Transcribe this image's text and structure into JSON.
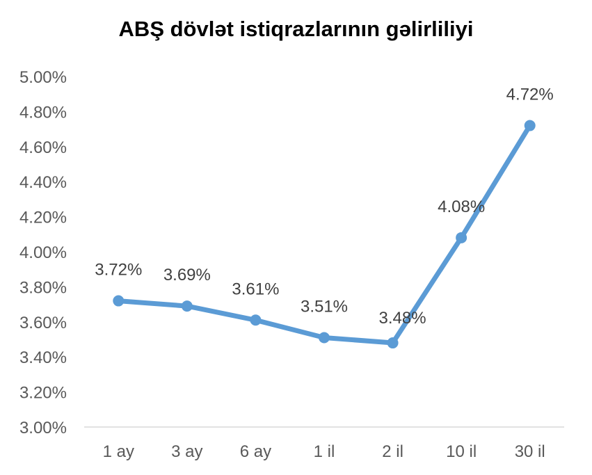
{
  "chart_data": {
    "type": "line",
    "title": "ABŞ dövlət istiqrazlarının gəlirliliyi",
    "xlabel": "",
    "ylabel": "",
    "categories": [
      "1 ay",
      "3 ay",
      "6 ay",
      "1 il",
      "2 il",
      "10 il",
      "30 il"
    ],
    "series": [
      {
        "values": [
          3.72,
          3.69,
          3.61,
          3.51,
          3.48,
          4.08,
          4.72
        ],
        "data_labels": [
          "3.72%",
          "3.69%",
          "3.61%",
          "3.51%",
          "3.48%",
          "4.08%",
          "4.72%"
        ],
        "color": "#5b9bd5"
      }
    ],
    "ylim": [
      3.0,
      5.0
    ],
    "yticks": [
      3.0,
      3.2,
      3.4,
      3.6,
      3.8,
      4.0,
      4.2,
      4.4,
      4.6,
      4.8,
      5.0
    ],
    "ytick_labels": [
      "3.00%",
      "3.20%",
      "3.40%",
      "3.60%",
      "3.80%",
      "4.00%",
      "4.20%",
      "4.40%",
      "4.60%",
      "4.80%",
      "5.00%"
    ],
    "grid": false,
    "legend": "none"
  }
}
